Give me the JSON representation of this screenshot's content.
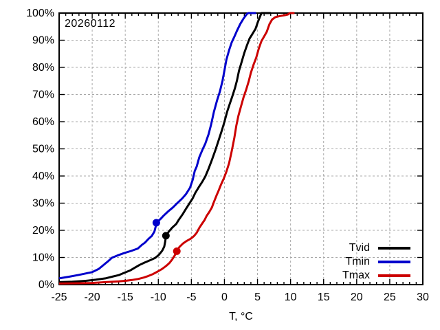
{
  "title": "20260112",
  "chart_data": {
    "type": "line",
    "variant": "empirical-cdf",
    "title": "20260112",
    "xlabel": "T, °C",
    "ylabel": "",
    "xlim": [
      -25,
      30
    ],
    "ylim": [
      0,
      100
    ],
    "x_major_tick_step": 5,
    "x_minor_tick_step": 1,
    "y_major_tick_step": 10,
    "y_tick_format": "percent",
    "grid": {
      "show": true,
      "style": "dashed",
      "color": "#a8a8a8"
    },
    "frame_color": "#000000",
    "legend": {
      "position": "inside-bottom-right"
    },
    "series": [
      {
        "name": "Tvid",
        "color": "#000000",
        "marker": {
          "T": -8.85,
          "pct": 18
        },
        "points": [
          [
            -25,
            0.9
          ],
          [
            -23,
            1.1
          ],
          [
            -21,
            1.4
          ],
          [
            -19.5,
            1.8
          ],
          [
            -18,
            2.3
          ],
          [
            -17,
            2.9
          ],
          [
            -16,
            3.5
          ],
          [
            -15.1,
            4.4
          ],
          [
            -14.2,
            5.3
          ],
          [
            -13.5,
            6.3
          ],
          [
            -12.8,
            7.3
          ],
          [
            -12,
            8.2
          ],
          [
            -11.2,
            9.0
          ],
          [
            -10.5,
            9.8
          ],
          [
            -9.9,
            11.0
          ],
          [
            -9.4,
            12.5
          ],
          [
            -9.1,
            14.0
          ],
          [
            -8.95,
            16.0
          ],
          [
            -8.85,
            18.0
          ],
          [
            -8.4,
            19.6
          ],
          [
            -7.9,
            21.0
          ],
          [
            -7.3,
            22.3
          ],
          [
            -6.9,
            23.9
          ],
          [
            -6.3,
            26.0
          ],
          [
            -5.8,
            28.0
          ],
          [
            -5.3,
            29.9
          ],
          [
            -4.8,
            31.8
          ],
          [
            -4.4,
            33.8
          ],
          [
            -3.9,
            35.8
          ],
          [
            -3.4,
            37.7
          ],
          [
            -2.9,
            39.8
          ],
          [
            -2.4,
            42.7
          ],
          [
            -1.9,
            45.9
          ],
          [
            -1.4,
            49.3
          ],
          [
            -0.9,
            53.0
          ],
          [
            -0.4,
            56.7
          ],
          [
            0,
            60.0
          ],
          [
            0.4,
            63.6
          ],
          [
            0.8,
            66.5
          ],
          [
            1.2,
            69.4
          ],
          [
            1.6,
            72.4
          ],
          [
            1.9,
            75.2
          ],
          [
            2.2,
            78.7
          ],
          [
            2.6,
            82.0
          ],
          [
            3,
            85.3
          ],
          [
            3.4,
            88.1
          ],
          [
            3.8,
            90.6
          ],
          [
            4.2,
            92.2
          ],
          [
            4.7,
            94.2
          ],
          [
            5,
            96.3
          ],
          [
            5.3,
            98.2
          ],
          [
            5.6,
            100
          ],
          [
            7,
            100
          ]
        ]
      },
      {
        "name": "Tmin",
        "color": "#0000cc",
        "marker": {
          "T": -10.3,
          "pct": 22.8
        },
        "points": [
          [
            -25,
            2.3
          ],
          [
            -23.5,
            2.9
          ],
          [
            -22,
            3.6
          ],
          [
            -21,
            4.1
          ],
          [
            -20,
            4.6
          ],
          [
            -19,
            5.8
          ],
          [
            -18.3,
            7.2
          ],
          [
            -17.6,
            8.6
          ],
          [
            -17,
            9.9
          ],
          [
            -16.2,
            10.7
          ],
          [
            -15.2,
            11.6
          ],
          [
            -14.1,
            12.4
          ],
          [
            -13.1,
            13.3
          ],
          [
            -12.5,
            14.6
          ],
          [
            -12,
            15.5
          ],
          [
            -11.5,
            16.8
          ],
          [
            -11,
            17.9
          ],
          [
            -10.6,
            19.5
          ],
          [
            -10.4,
            21.3
          ],
          [
            -10.3,
            22.8
          ],
          [
            -9.7,
            24.1
          ],
          [
            -9.2,
            25.4
          ],
          [
            -8.5,
            27.0
          ],
          [
            -7.8,
            28.4
          ],
          [
            -7.1,
            30.1
          ],
          [
            -6.4,
            31.7
          ],
          [
            -5.8,
            33.4
          ],
          [
            -5.2,
            35.7
          ],
          [
            -4.8,
            38.6
          ],
          [
            -4.5,
            41.8
          ],
          [
            -4.2,
            43.5
          ],
          [
            -3.8,
            46.9
          ],
          [
            -3.3,
            49.8
          ],
          [
            -2.9,
            51.9
          ],
          [
            -2.4,
            55.4
          ],
          [
            -2,
            59.1
          ],
          [
            -1.6,
            63.6
          ],
          [
            -1.1,
            68.0
          ],
          [
            -0.7,
            71.0
          ],
          [
            -0.3,
            75.0
          ],
          [
            0,
            78.9
          ],
          [
            0.3,
            82.8
          ],
          [
            0.7,
            86.3
          ],
          [
            1.1,
            89.2
          ],
          [
            1.5,
            91.3
          ],
          [
            1.9,
            93.5
          ],
          [
            2.4,
            96.0
          ],
          [
            2.9,
            98.0
          ],
          [
            3.4,
            99.7
          ],
          [
            3.6,
            100
          ],
          [
            4.8,
            100
          ]
        ]
      },
      {
        "name": "Tmax",
        "color": "#cc0000",
        "marker": {
          "T": -7.2,
          "pct": 12.3
        },
        "points": [
          [
            -25,
            0.4
          ],
          [
            -22,
            0.5
          ],
          [
            -20,
            0.6
          ],
          [
            -18,
            0.9
          ],
          [
            -16,
            1.2
          ],
          [
            -15,
            1.4
          ],
          [
            -14,
            1.7
          ],
          [
            -13,
            2.1
          ],
          [
            -12.2,
            2.6
          ],
          [
            -11.5,
            3.2
          ],
          [
            -10.8,
            3.9
          ],
          [
            -10.1,
            4.8
          ],
          [
            -9.4,
            5.8
          ],
          [
            -8.8,
            6.9
          ],
          [
            -8.3,
            8.0
          ],
          [
            -7.9,
            9.3
          ],
          [
            -7.5,
            10.8
          ],
          [
            -7.2,
            12.3
          ],
          [
            -6.8,
            13.9
          ],
          [
            -6.3,
            15.1
          ],
          [
            -5.7,
            16.1
          ],
          [
            -5.1,
            16.9
          ],
          [
            -4.6,
            17.9
          ],
          [
            -4.2,
            19.1
          ],
          [
            -3.8,
            20.9
          ],
          [
            -3.4,
            22.4
          ],
          [
            -3,
            23.8
          ],
          [
            -2.7,
            25.3
          ],
          [
            -2.3,
            26.7
          ],
          [
            -1.9,
            28.4
          ],
          [
            -1.6,
            30.4
          ],
          [
            -1.2,
            32.8
          ],
          [
            -0.9,
            34.5
          ],
          [
            -0.5,
            36.9
          ],
          [
            -0.1,
            39.1
          ],
          [
            0.3,
            41.6
          ],
          [
            0.7,
            44.7
          ],
          [
            1.1,
            49.1
          ],
          [
            1.5,
            54.1
          ],
          [
            1.8,
            58.6
          ],
          [
            2.1,
            62.1
          ],
          [
            2.5,
            65.6
          ],
          [
            2.9,
            69.0
          ],
          [
            3.3,
            71.9
          ],
          [
            3.7,
            75.1
          ],
          [
            4,
            78.0
          ],
          [
            4.4,
            81.0
          ],
          [
            4.8,
            83.5
          ],
          [
            5.2,
            87.0
          ],
          [
            5.6,
            89.7
          ],
          [
            6,
            91.4
          ],
          [
            6.4,
            93.1
          ],
          [
            6.8,
            95.9
          ],
          [
            7.2,
            97.6
          ],
          [
            7.7,
            98.5
          ],
          [
            8.4,
            98.9
          ],
          [
            9.1,
            99.2
          ],
          [
            9.6,
            99.5
          ],
          [
            9.9,
            100
          ],
          [
            10.6,
            100
          ]
        ]
      }
    ]
  }
}
